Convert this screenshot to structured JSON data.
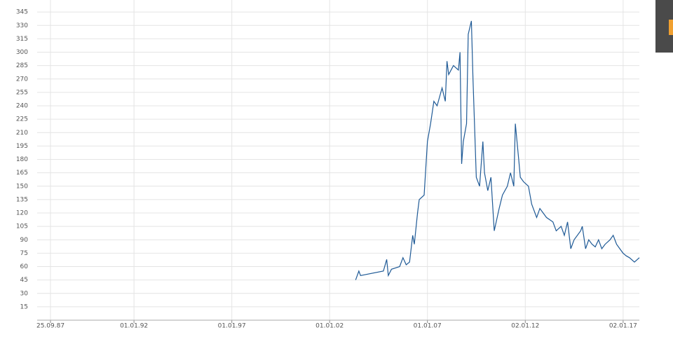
{
  "chart_data": {
    "type": "line",
    "color": "#1f5a96",
    "grid": true,
    "xlim": [
      "1987-01-19",
      "2017-11-01"
    ],
    "xticks": [
      {
        "value": "1987-09-25",
        "label": "25.09.87"
      },
      {
        "value": "1992-01-01",
        "label": "01.01.92"
      },
      {
        "value": "1997-01-01",
        "label": "01.01.97"
      },
      {
        "value": "2002-01-01",
        "label": "01.01.02"
      },
      {
        "value": "2007-01-01",
        "label": "01.01.07"
      },
      {
        "value": "2012-01-02",
        "label": "02.01.12"
      },
      {
        "value": "2017-01-02",
        "label": "02.01.17"
      }
    ],
    "ylim": [
      0,
      360
    ],
    "yticks": [
      15,
      30,
      45,
      60,
      75,
      90,
      105,
      120,
      135,
      150,
      165,
      180,
      195,
      210,
      225,
      240,
      255,
      270,
      285,
      300,
      315,
      330,
      345
    ],
    "x": [
      "2003-05",
      "2003-07",
      "2003-08",
      "2004-10",
      "2004-12",
      "2005-01",
      "2005-03",
      "2005-08",
      "2005-10",
      "2005-12",
      "2006-02",
      "2006-04",
      "2006-05",
      "2006-07",
      "2006-08",
      "2006-11",
      "2007-01",
      "2007-03",
      "2007-05",
      "2007-07",
      "2007-10",
      "2007-12",
      "2008-01",
      "2008-02",
      "2008-05",
      "2008-08",
      "2008-09",
      "2008-10",
      "2008-11",
      "2009-01",
      "2009-02",
      "2009-04",
      "2009-05",
      "2009-07",
      "2009-09",
      "2009-11",
      "2009-12",
      "2010-02",
      "2010-04",
      "2010-06",
      "2010-09",
      "2010-11",
      "2011-02",
      "2011-04",
      "2011-06",
      "2011-07",
      "2011-09",
      "2011-10",
      "2011-12",
      "2012-03",
      "2012-05",
      "2012-08",
      "2012-10",
      "2012-12",
      "2013-02",
      "2013-06",
      "2013-08",
      "2013-11",
      "2014-01",
      "2014-03",
      "2014-05",
      "2014-07",
      "2014-11",
      "2014-12",
      "2015-02",
      "2015-04",
      "2015-06",
      "2015-08",
      "2015-10",
      "2015-12",
      "2016-02",
      "2016-05",
      "2016-07",
      "2016-09",
      "2016-11",
      "2017-01",
      "2017-03",
      "2017-05",
      "2017-08",
      "2017-11"
    ],
    "values": [
      45,
      55,
      50,
      55,
      68,
      50,
      57,
      60,
      70,
      62,
      65,
      95,
      85,
      120,
      135,
      140,
      200,
      220,
      245,
      240,
      260,
      245,
      290,
      275,
      285,
      280,
      300,
      175,
      200,
      220,
      320,
      335,
      270,
      160,
      150,
      200,
      165,
      145,
      160,
      100,
      125,
      140,
      150,
      165,
      150,
      220,
      180,
      160,
      155,
      150,
      130,
      115,
      125,
      120,
      115,
      110,
      100,
      105,
      95,
      110,
      80,
      90,
      100,
      105,
      80,
      90,
      85,
      82,
      90,
      80,
      85,
      90,
      95,
      85,
      80,
      75,
      72,
      70,
      65,
      70
    ]
  }
}
